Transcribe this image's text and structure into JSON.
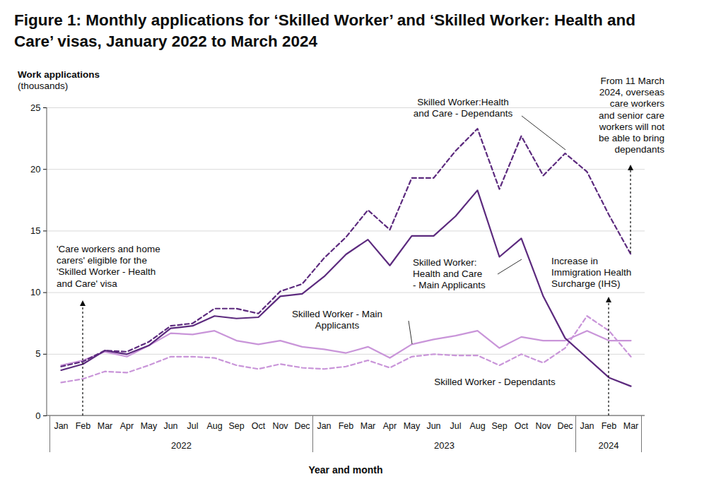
{
  "chart_data": {
    "type": "line",
    "title": "Figure 1: Monthly applications for ‘Skilled Worker’ and ‘Skilled Worker: Health and Care’ visas, January 2022 to March 2024",
    "y_label": "Work applications\n(thousands)",
    "x_label": "Year and month",
    "categories": [
      "Jan",
      "Feb",
      "Mar",
      "Apr",
      "May",
      "Jun",
      "Jul",
      "Aug",
      "Sep",
      "Oct",
      "Nov",
      "Dec",
      "Jan",
      "Feb",
      "Mar",
      "Apr",
      "May",
      "Jun",
      "Jul",
      "Aug",
      "Sep",
      "Oct",
      "Nov",
      "Dec",
      "Jan",
      "Feb",
      "Mar"
    ],
    "years": [
      {
        "label": "2022",
        "months": 12
      },
      {
        "label": "2023",
        "months": 12
      },
      {
        "label": "2024",
        "months": 3
      }
    ],
    "ylim": [
      0,
      25
    ],
    "yticks": [
      0,
      5,
      10,
      15,
      20,
      25
    ],
    "grid": true,
    "series": [
      {
        "name": "Skilled Worker - Dependants",
        "color": "#c995d9",
        "line_style": "dashed",
        "values": [
          2.7,
          3.0,
          3.6,
          3.5,
          4.1,
          4.8,
          4.8,
          4.7,
          4.1,
          3.8,
          4.2,
          3.9,
          3.8,
          4.0,
          4.5,
          3.9,
          4.8,
          5.0,
          4.9,
          4.9,
          4.1,
          5.0,
          4.3,
          5.5,
          8.1,
          6.9,
          4.8
        ]
      },
      {
        "name": "Skilled Worker - Main\nApplicants",
        "color": "#c995d9",
        "line_style": "solid",
        "values": [
          4.1,
          4.5,
          5.2,
          4.8,
          5.7,
          6.7,
          6.6,
          6.9,
          6.1,
          5.8,
          6.1,
          5.6,
          5.4,
          5.1,
          5.6,
          4.7,
          5.8,
          6.2,
          6.5,
          6.9,
          5.5,
          6.4,
          6.1,
          6.1,
          6.9,
          6.1,
          6.1
        ]
      },
      {
        "name": "Skilled Worker:Health\nand Care - Dependants",
        "color": "#5c2a7e",
        "line_style": "dashed",
        "values": [
          4.0,
          4.4,
          5.3,
          5.2,
          6.0,
          7.3,
          7.5,
          8.7,
          8.7,
          8.3,
          10.1,
          10.7,
          12.8,
          14.5,
          16.7,
          15.1,
          19.3,
          19.3,
          21.5,
          23.3,
          18.4,
          22.7,
          19.5,
          21.3,
          19.8,
          16.3,
          13.1
        ]
      },
      {
        "name": "Skilled Worker:\nHealth and Care\n- Main Applicants",
        "color": "#5c2a7e",
        "line_style": "solid",
        "values": [
          3.7,
          4.2,
          5.3,
          5.0,
          5.7,
          7.1,
          7.3,
          8.1,
          7.9,
          8.0,
          9.7,
          9.9,
          11.3,
          13.1,
          14.3,
          12.2,
          14.6,
          14.6,
          16.2,
          18.3,
          12.9,
          14.4,
          9.7,
          6.3,
          4.7,
          3.1,
          2.4
        ]
      }
    ],
    "annotations": [
      {
        "text": "'Care workers and home\ncarers' eligible for the\n'Skilled Worker - Health\nand Care' visa",
        "year": "2022",
        "month": "Feb"
      },
      {
        "text": "From 11 March\n2024, overseas\ncare workers\nand senior care\nworkers will not\nbe able to bring\ndependants",
        "year": "2024",
        "month": "Mar"
      },
      {
        "text": "Increase in\nImmigration Health\nSurcharge (IHS)",
        "year": "2024",
        "month": "Feb"
      }
    ]
  }
}
